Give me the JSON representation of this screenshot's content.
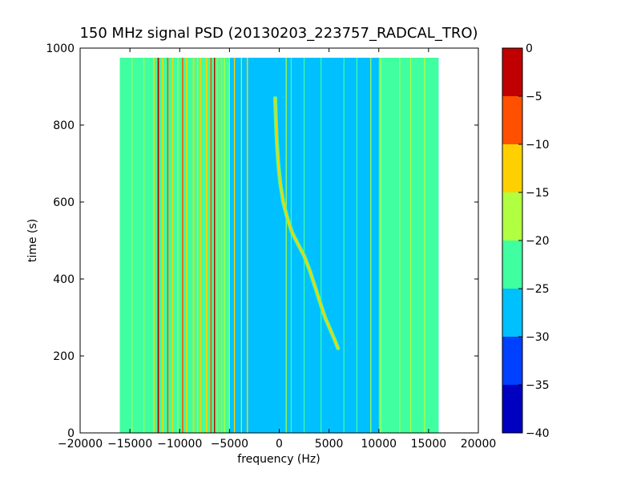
{
  "chart_data": {
    "type": "heatmap",
    "title": "150 MHz signal PSD (20130203_223757_RADCAL_TRO)",
    "xlabel": "frequency (Hz)",
    "ylabel": "time (s)",
    "xlim": [
      -20000,
      20000
    ],
    "ylim": [
      0,
      1000
    ],
    "x_ticks": [
      -20000,
      -15000,
      -10000,
      -5000,
      0,
      5000,
      10000,
      15000,
      20000
    ],
    "x_tick_labels": [
      "−20000",
      "−15000",
      "−10000",
      "−5000",
      "0",
      "5000",
      "10000",
      "15000",
      "20000"
    ],
    "y_ticks": [
      0,
      200,
      400,
      600,
      800,
      1000
    ],
    "y_tick_labels": [
      "0",
      "200",
      "400",
      "600",
      "800",
      "1000"
    ],
    "data_extent": {
      "freq": [
        -16000,
        16000
      ],
      "time": [
        0,
        975
      ]
    },
    "background_level": -27,
    "colorbar": {
      "range": [
        -40,
        0
      ],
      "ticks": [
        0,
        -5,
        -10,
        -15,
        -20,
        -25,
        -30,
        -35,
        -40
      ],
      "tick_labels": [
        "0",
        "−5",
        "−10",
        "−15",
        "−20",
        "−25",
        "−30",
        "−35",
        "−40"
      ],
      "levels": [
        {
          "range": [
            -40,
            -35
          ],
          "color": "#0000c0"
        },
        {
          "range": [
            -35,
            -30
          ],
          "color": "#0040ff"
        },
        {
          "range": [
            -30,
            -25
          ],
          "color": "#00c0ff"
        },
        {
          "range": [
            -25,
            -20
          ],
          "color": "#40ffa0"
        },
        {
          "range": [
            -20,
            -15
          ],
          "color": "#b0ff40"
        },
        {
          "range": [
            -15,
            -10
          ],
          "color": "#ffd000"
        },
        {
          "range": [
            -10,
            -5
          ],
          "color": "#ff5000"
        },
        {
          "range": [
            -5,
            0
          ],
          "color": "#c00000"
        }
      ]
    },
    "bands": [
      {
        "f0": -16000,
        "f1": -5000,
        "level": -22
      },
      {
        "f0": 10000,
        "f1": 16000,
        "level": -22
      },
      {
        "f0": -16000,
        "f1": -15300,
        "level": -21
      }
    ],
    "lines": [
      {
        "f": -14800,
        "level": -17,
        "width": 100
      },
      {
        "f": -13600,
        "level": -17,
        "width": 100
      },
      {
        "f": -12600,
        "level": -13,
        "width": 150
      },
      {
        "f": -12150,
        "level": -2,
        "width": 150
      },
      {
        "f": -11700,
        "level": -13,
        "width": 130
      },
      {
        "f": -11200,
        "level": -7,
        "width": 130
      },
      {
        "f": -10700,
        "level": -13,
        "width": 130
      },
      {
        "f": -10200,
        "level": -17,
        "width": 120
      },
      {
        "f": -9700,
        "level": -7,
        "width": 130
      },
      {
        "f": -9300,
        "level": -13,
        "width": 130
      },
      {
        "f": -8600,
        "level": -13,
        "width": 150
      },
      {
        "f": -8200,
        "level": -17,
        "width": 120
      },
      {
        "f": -7900,
        "level": -13,
        "width": 120
      },
      {
        "f": -7300,
        "level": -13,
        "width": 130
      },
      {
        "f": -6850,
        "level": -7,
        "width": 140
      },
      {
        "f": -6500,
        "level": -2,
        "width": 110
      },
      {
        "f": -6200,
        "level": -13,
        "width": 120
      },
      {
        "f": -5800,
        "level": -13,
        "width": 120
      },
      {
        "f": -5500,
        "level": -17,
        "width": 110
      },
      {
        "f": -5000,
        "level": -17,
        "width": 100
      },
      {
        "f": -4500,
        "level": -13,
        "width": 110
      },
      {
        "f": -3800,
        "level": -17,
        "width": 100
      },
      {
        "f": -3200,
        "level": -13,
        "width": 130
      },
      {
        "f": 700,
        "level": -17,
        "width": 90
      },
      {
        "f": 1200,
        "level": -22,
        "width": 80
      },
      {
        "f": 2500,
        "level": -22,
        "width": 80
      },
      {
        "f": 4200,
        "level": -22,
        "width": 80
      },
      {
        "f": 6500,
        "level": -22,
        "width": 80
      },
      {
        "f": 7800,
        "level": -22,
        "width": 80
      },
      {
        "f": 9200,
        "level": -17,
        "width": 90
      },
      {
        "f": 10200,
        "level": -17,
        "width": 110
      },
      {
        "f": 11200,
        "level": -22,
        "width": 90
      },
      {
        "f": 12100,
        "level": -17,
        "width": 110
      },
      {
        "f": 13200,
        "level": -17,
        "width": 100
      },
      {
        "f": 14600,
        "level": -17,
        "width": 110
      }
    ],
    "sweep": {
      "level": -13,
      "points": [
        [
          -400,
          870
        ],
        [
          -350,
          820
        ],
        [
          -250,
          760
        ],
        [
          -100,
          700
        ],
        [
          100,
          650
        ],
        [
          400,
          600
        ],
        [
          800,
          560
        ],
        [
          1300,
          520
        ],
        [
          1900,
          490
        ],
        [
          2500,
          460
        ],
        [
          3100,
          420
        ],
        [
          3600,
          380
        ],
        [
          4100,
          340
        ],
        [
          4600,
          300
        ],
        [
          5100,
          270
        ],
        [
          5600,
          240
        ],
        [
          5900,
          220
        ]
      ]
    }
  }
}
